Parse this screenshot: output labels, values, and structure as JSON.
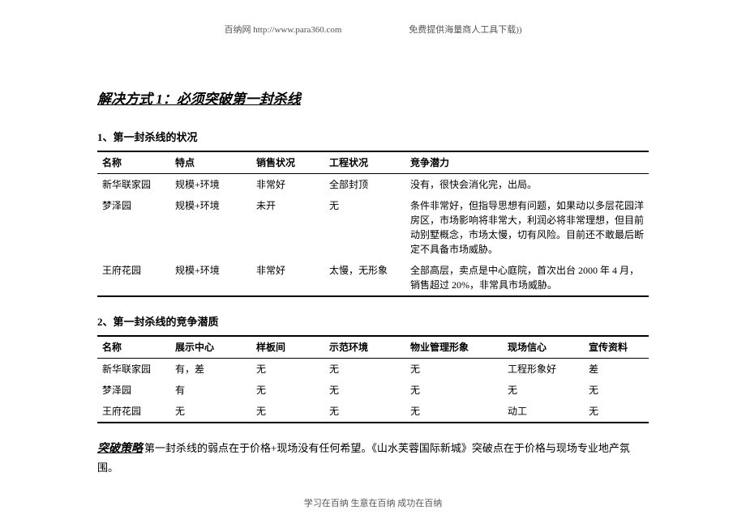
{
  "header": {
    "left": "百纳网  http://www.para360.com",
    "right": "免费提供海量商人工具下载))"
  },
  "title": "解决方式 1：必须突破第一封杀线",
  "section1": {
    "heading": "1、第一封杀线的状况",
    "columns": [
      "名称",
      "特点",
      "销售状况",
      "工程状况",
      "竞争潜力"
    ],
    "col_widths": [
      "90px",
      "100px",
      "90px",
      "100px",
      "auto"
    ],
    "rows": [
      [
        "新华联家园",
        "规模+环境",
        "非常好",
        "全部封顶",
        "没有，很快会消化完，出局。"
      ],
      [
        "梦泽园",
        "规模+环境",
        "未开",
        "无",
        "条件非常好，但指导思想有问题，如果动以多层花园洋房区，市场影响将非常大，利润必将非常理想，但目前动别墅概念，市场太慢，切有风险。目前还不敢最后断定不具备市场威胁。"
      ],
      [
        "王府花园",
        "规模+环境",
        "非常好",
        "太慢，无形象",
        "全部高层，卖点是中心庭院，首次出台 2000 年 4 月，销售超过 20%，非常具市场威胁。"
      ]
    ]
  },
  "section2": {
    "heading": "2、第一封杀线的竞争潜质",
    "columns": [
      "名称",
      "展示中心",
      "样板间",
      "示范环境",
      "物业管理形象",
      "现场信心",
      "宣传资料"
    ],
    "col_widths": [
      "90px",
      "100px",
      "90px",
      "100px",
      "120px",
      "100px",
      "auto"
    ],
    "rows": [
      [
        "新华联家园",
        "有，差",
        "无",
        "无",
        "无",
        "工程形象好",
        "差"
      ],
      [
        "梦泽园",
        "有",
        "无",
        "无",
        "无",
        "无",
        "无"
      ],
      [
        "王府花园",
        "无",
        "无",
        "无",
        "无",
        "动工",
        "无"
      ]
    ]
  },
  "strategy": {
    "lead": "突破策略",
    "body": "第一封杀线的弱点在于价格+现场没有任何希望。《山水芙蓉国际新城》突破点在于价格与现场专业地产氛围。"
  },
  "footer": "学习在百纳  生意在百纳  成功在百纳"
}
